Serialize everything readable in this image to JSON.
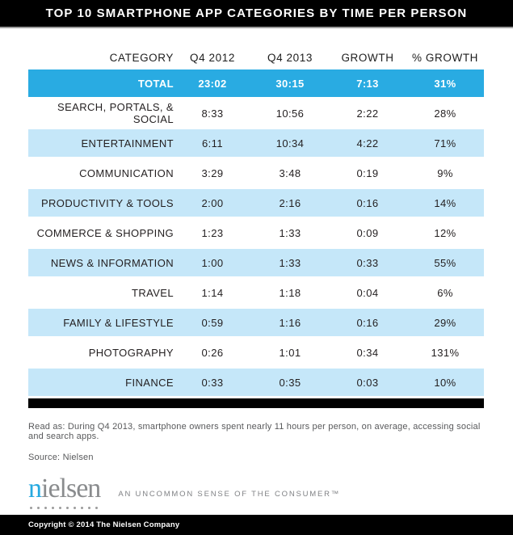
{
  "title_bar": {
    "title": "TOP 10 SMARTPHONE APP CATEGORIES BY TIME PER PERSON"
  },
  "chart_data": {
    "type": "table",
    "title": "TOP 10 SMARTPHONE APP CATEGORIES BY TIME PER PERSON",
    "columns": [
      "CATEGORY",
      "Q4 2012",
      "Q4 2013",
      "GROWTH",
      "% GROWTH"
    ],
    "rows": [
      {
        "category": "TOTAL",
        "q4_2012": "23:02",
        "q4_2013": "30:15",
        "growth": "7:13",
        "pct_growth": "31%"
      },
      {
        "category": "SEARCH, PORTALS, & SOCIAL",
        "q4_2012": "8:33",
        "q4_2013": "10:56",
        "growth": "2:22",
        "pct_growth": "28%"
      },
      {
        "category": "ENTERTAINMENT",
        "q4_2012": "6:11",
        "q4_2013": "10:34",
        "growth": "4:22",
        "pct_growth": "71%"
      },
      {
        "category": "COMMUNICATION",
        "q4_2012": "3:29",
        "q4_2013": "3:48",
        "growth": "0:19",
        "pct_growth": "9%"
      },
      {
        "category": "PRODUCTIVITY & TOOLS",
        "q4_2012": "2:00",
        "q4_2013": "2:16",
        "growth": "0:16",
        "pct_growth": "14%"
      },
      {
        "category": "COMMERCE & SHOPPING",
        "q4_2012": "1:23",
        "q4_2013": "1:33",
        "growth": "0:09",
        "pct_growth": "12%"
      },
      {
        "category": "NEWS & INFORMATION",
        "q4_2012": "1:00",
        "q4_2013": "1:33",
        "growth": "0:33",
        "pct_growth": "55%"
      },
      {
        "category": "TRAVEL",
        "q4_2012": "1:14",
        "q4_2013": "1:18",
        "growth": "0:04",
        "pct_growth": "6%"
      },
      {
        "category": "FAMILY & LIFESTYLE",
        "q4_2012": "0:59",
        "q4_2013": "1:16",
        "growth": "0:16",
        "pct_growth": "29%"
      },
      {
        "category": "PHOTOGRAPHY",
        "q4_2012": "0:26",
        "q4_2013": "1:01",
        "growth": "0:34",
        "pct_growth": "131%"
      },
      {
        "category": "FINANCE",
        "q4_2012": "0:33",
        "q4_2013": "0:35",
        "growth": "0:03",
        "pct_growth": "10%"
      }
    ]
  },
  "notes": {
    "read_as": "Read as: During Q4 2013, smartphone owners spent nearly 11 hours per person, on average, accessing social and search apps.",
    "source": "Source: Nielsen"
  },
  "logo": {
    "first_letter": "n",
    "rest": "ielsen",
    "tagline": "AN UNCOMMON SENSE OF THE CONSUMER™"
  },
  "footer": {
    "copyright": "Copyright © 2014 The Nielsen Company"
  },
  "colors": {
    "accent_cyan": "#29abe2",
    "row_stripe": "#c5e7f9",
    "bar_black": "#000000",
    "logo_blue": "#26a9e0",
    "logo_gray": "#8a8c8e",
    "note_gray": "#58595b"
  }
}
